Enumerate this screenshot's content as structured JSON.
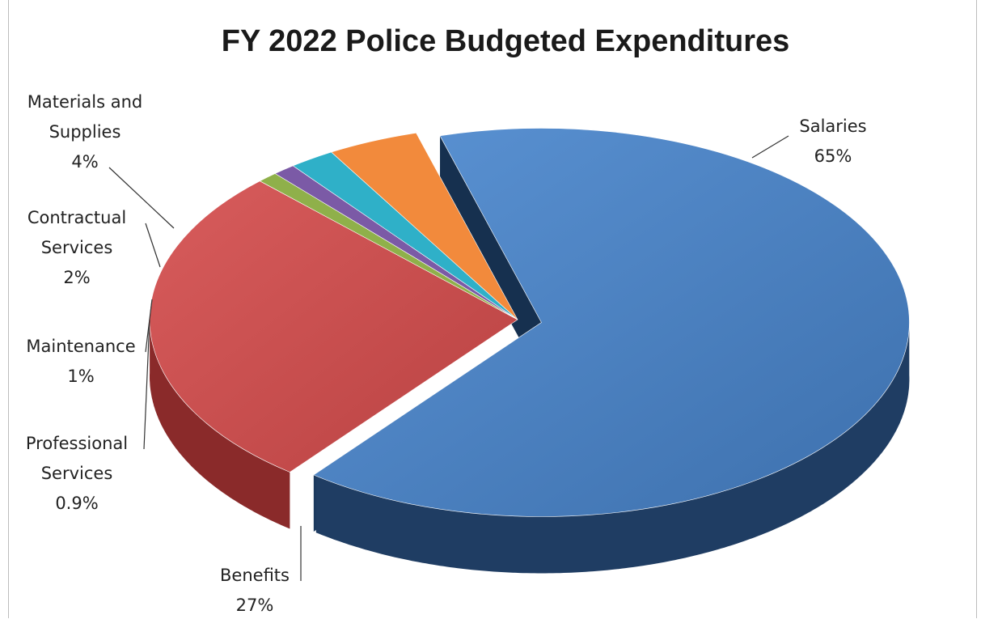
{
  "chart_data": {
    "type": "pie",
    "title": "FY 2022 Police Budgeted Expenditures",
    "slices": [
      {
        "name": "Salaries",
        "value": 65,
        "label": "65%",
        "color": "#4a7fbf",
        "side_color": "#1f3d63"
      },
      {
        "name": "Benefits",
        "value": 27,
        "label": "27%",
        "color": "#c84b4b",
        "side_color": "#8a2a2a"
      },
      {
        "name": "Professional Services",
        "value": 0.9,
        "label": "0.9%",
        "color": "#8fb04a",
        "side_color": "#4d6626"
      },
      {
        "name": "Maintenance",
        "value": 1,
        "label": "1%",
        "color": "#7b5aa6",
        "side_color": "#4b3566"
      },
      {
        "name": "Contractual Services",
        "value": 2,
        "label": "2%",
        "color": "#2fb0c8",
        "side_color": "#1a6978"
      },
      {
        "name": "Materials and Supplies",
        "value": 4,
        "label": "4%",
        "color": "#f28a3c",
        "side_color": "#a85a1d"
      }
    ],
    "label_lines": {
      "Salaries": [
        "Salaries",
        "65%"
      ],
      "Benefits": [
        "Benefits",
        "27%"
      ],
      "Professional Services": [
        "Professional",
        "Services",
        "0.9%"
      ],
      "Maintenance": [
        "Maintenance",
        "1%"
      ],
      "Contractual Services": [
        "Contractual",
        "Services",
        "2%"
      ],
      "Materials and Supplies": [
        "Materials and",
        "Supplies",
        "4%"
      ]
    },
    "exploded": [
      "Salaries"
    ],
    "style": "3d-pie",
    "legend": "none"
  }
}
